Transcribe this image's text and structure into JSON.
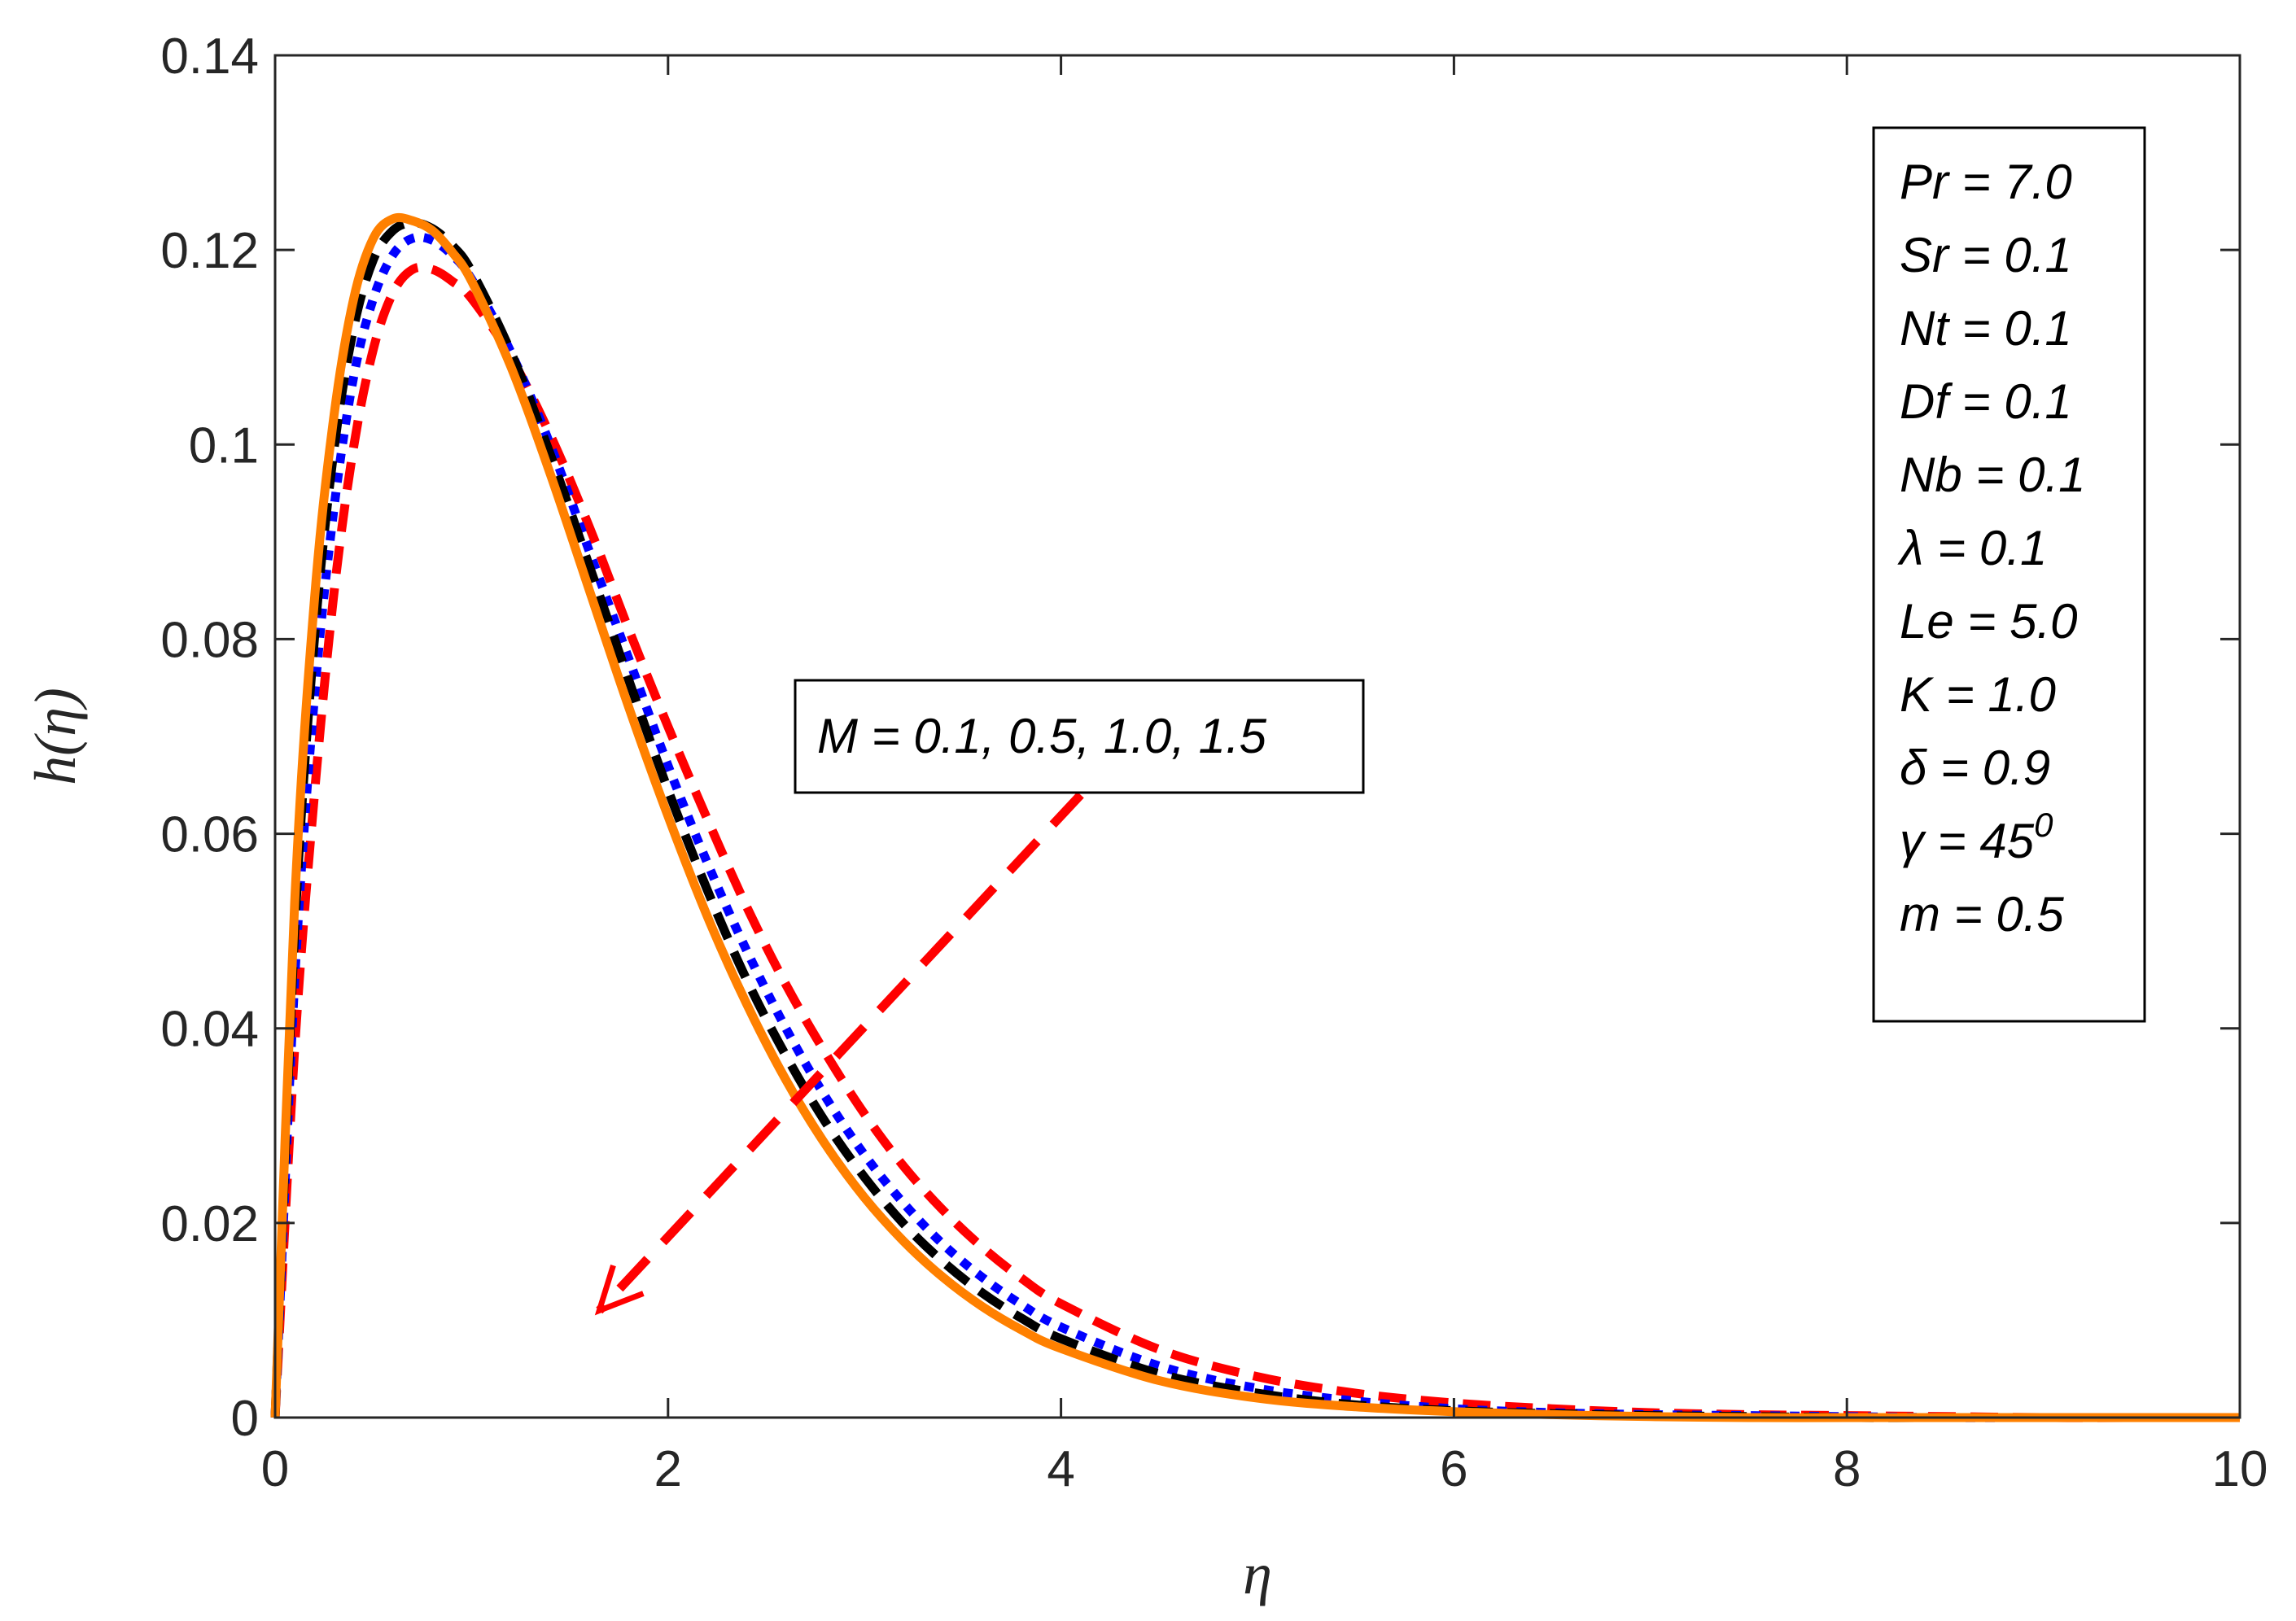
{
  "chart_data": {
    "type": "line",
    "xlabel": "η",
    "ylabel": "h(η)",
    "xlim": [
      0,
      10
    ],
    "ylim": [
      0,
      0.14
    ],
    "xticks": [
      0,
      2,
      4,
      6,
      8,
      10
    ],
    "xtick_labels": [
      "0",
      "2",
      "4",
      "6",
      "8",
      "10"
    ],
    "yticks": [
      0,
      0.02,
      0.04,
      0.06,
      0.08,
      0.1,
      0.12,
      0.14
    ],
    "ytick_labels": [
      "0",
      "0.02",
      "0.04",
      "0.06",
      "0.08",
      "0.1",
      "0.12",
      "0.14"
    ],
    "grid": false,
    "colors": {
      "axis": "#262626",
      "arrow": "#ff0000"
    },
    "x": [
      0,
      0.1,
      0.2,
      0.3,
      0.4,
      0.5,
      0.6,
      0.7,
      0.8,
      0.9,
      1.0,
      1.2,
      1.4,
      1.6,
      1.8,
      2.0,
      2.2,
      2.4,
      2.6,
      2.8,
      3.0,
      3.2,
      3.4,
      3.6,
      3.8,
      4.0,
      4.5,
      5.0,
      5.5,
      6.0,
      6.5,
      7.0,
      7.5,
      8.0,
      8.5,
      9.0,
      9.5,
      10.0
    ],
    "series": [
      {
        "name": "M = 0.1",
        "color": "#ff0000",
        "style": "dashed",
        "values": [
          0,
          0.038,
          0.064,
          0.0848,
          0.0998,
          0.1098,
          0.1156,
          0.118,
          0.118,
          0.1168,
          0.115,
          0.109,
          0.101,
          0.0915,
          0.081,
          0.071,
          0.0615,
          0.0525,
          0.0445,
          0.0375,
          0.0312,
          0.0258,
          0.0213,
          0.0175,
          0.0143,
          0.0117,
          0.007,
          0.0042,
          0.0025,
          0.0015,
          0.0009,
          0.0005,
          0.0003,
          0.0002,
          0.0001,
          0,
          0,
          0
        ]
      },
      {
        "name": "M = 0.5",
        "color": "#0000ff",
        "style": "dotted",
        "values": [
          0,
          0.045,
          0.074,
          0.0935,
          0.107,
          0.115,
          0.1195,
          0.1212,
          0.121,
          0.1195,
          0.117,
          0.1095,
          0.1,
          0.089,
          0.078,
          0.067,
          0.057,
          0.048,
          0.04,
          0.033,
          0.027,
          0.022,
          0.0178,
          0.0144,
          0.0116,
          0.0093,
          0.0053,
          0.003,
          0.0017,
          0.0009,
          0.0005,
          0.0003,
          0.0002,
          0.0001,
          0,
          0,
          0,
          0
        ]
      },
      {
        "name": "M = 1.0",
        "color": "#000000",
        "style": "dashed",
        "values": [
          0,
          0.05,
          0.08,
          0.0995,
          0.112,
          0.119,
          0.122,
          0.1228,
          0.1222,
          0.1205,
          0.1178,
          0.1095,
          0.099,
          0.0875,
          0.0758,
          0.0645,
          0.0542,
          0.045,
          0.0372,
          0.0304,
          0.0247,
          0.0199,
          0.016,
          0.0128,
          0.0102,
          0.0081,
          0.0045,
          0.0025,
          0.0013,
          0.0007,
          0.0004,
          0.0002,
          0.0001,
          0,
          0,
          0,
          0,
          0
        ]
      },
      {
        "name": "M = 1.5",
        "color": "#ff8000",
        "style": "solid",
        "values": [
          0,
          0.053,
          0.084,
          0.103,
          0.115,
          0.1212,
          0.1232,
          0.123,
          0.122,
          0.1198,
          0.1168,
          0.108,
          0.097,
          0.085,
          0.073,
          0.0618,
          0.0515,
          0.0425,
          0.0347,
          0.0281,
          0.0226,
          0.0181,
          0.0144,
          0.0114,
          0.009,
          0.0071,
          0.0038,
          0.002,
          0.0011,
          0.0006,
          0.0003,
          0.0001,
          0,
          0,
          0,
          0,
          0,
          0
        ]
      }
    ],
    "annotation": {
      "label": "M = 0.1, 0.5, 1.0, 1.5",
      "arrow_from": [
        4.1,
        0.064
      ],
      "arrow_to": [
        1.65,
        0.011
      ]
    },
    "parameters": [
      {
        "text": "Pr = 7.0"
      },
      {
        "text": "Sr = 0.1"
      },
      {
        "text": "Nt = 0.1"
      },
      {
        "text": "Df = 0.1"
      },
      {
        "text": "Nb = 0.1"
      },
      {
        "text": "λ = 0.1"
      },
      {
        "text": "Le = 5.0"
      },
      {
        "text": "K = 1.0"
      },
      {
        "text": "δ = 0.9"
      },
      {
        "text": "γ = 45",
        "sup": "0"
      },
      {
        "text": "m = 0.5"
      }
    ]
  }
}
